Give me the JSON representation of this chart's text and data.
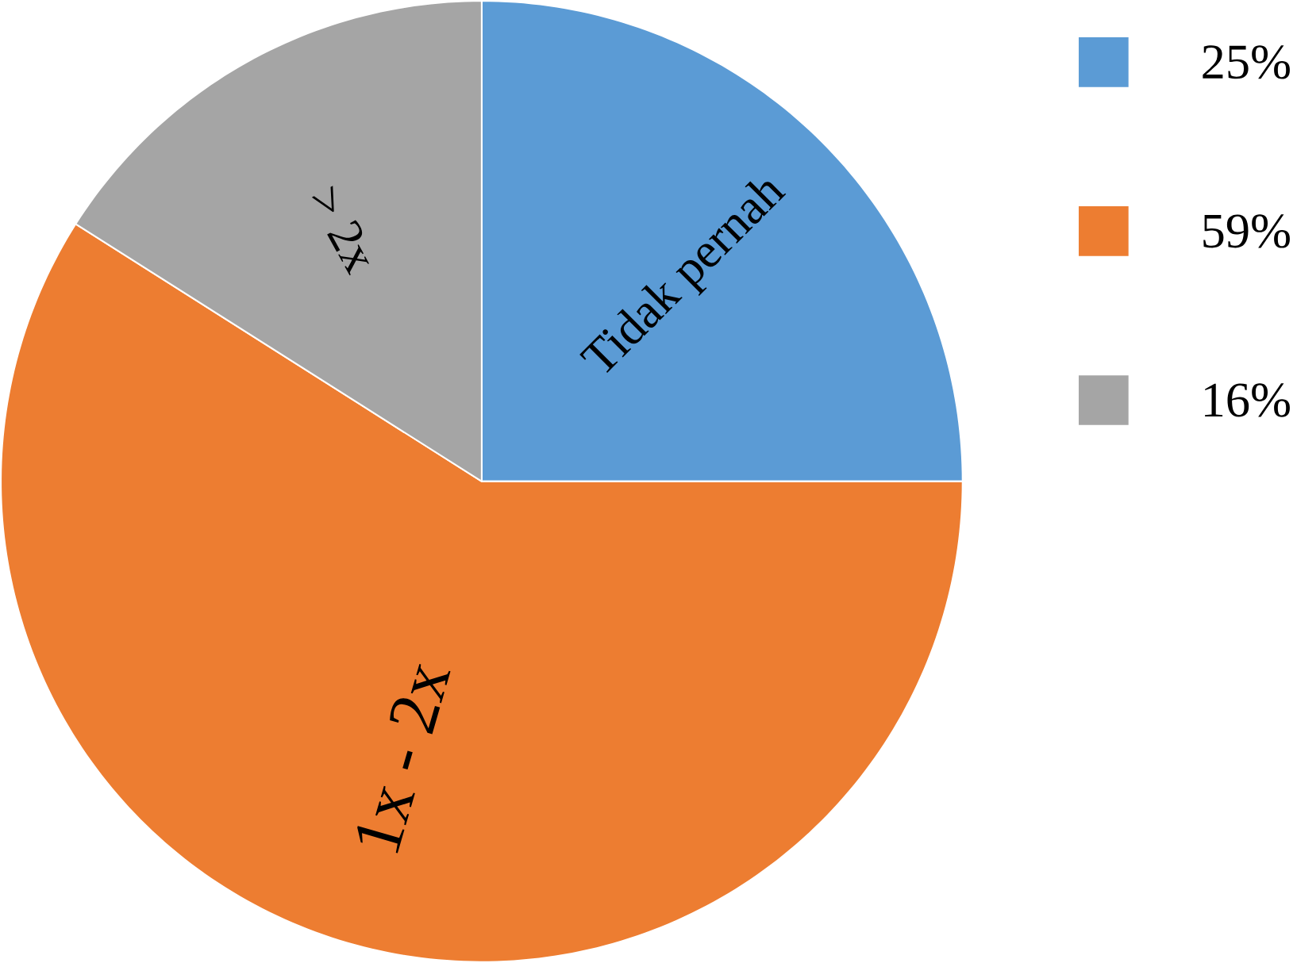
{
  "chart_data": {
    "type": "pie",
    "categories": [
      "25%",
      "59%",
      "16%"
    ],
    "values": [
      25,
      59,
      16
    ],
    "colors": [
      "#5b9bd5",
      "#ed7d31",
      "#a5a5a5"
    ],
    "annotations": [
      "Tidak pernah",
      "1x - 2x",
      "> 2x"
    ],
    "legend": "right"
  }
}
